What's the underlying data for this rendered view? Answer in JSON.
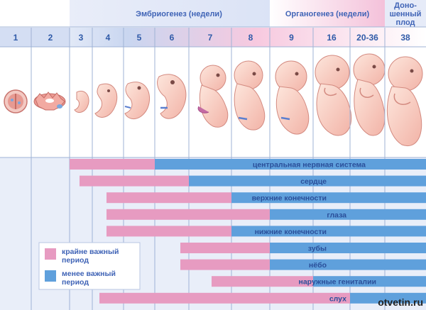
{
  "headers": {
    "embryo": "Эмбриогенез (недели)",
    "organ": "Органогенез (недели)",
    "fullterm_line1": "Доно-",
    "fullterm_line2": "шенный",
    "fullterm_line3": "плод"
  },
  "weeks": [
    "1",
    "2",
    "3",
    "4",
    "5",
    "6",
    "7",
    "8",
    "9",
    "16",
    "20-36",
    "38"
  ],
  "organs": [
    {
      "label": "центральная нервная система",
      "critical_from": "3",
      "critical_to": "5",
      "less_from": "6",
      "less_to": "38"
    },
    {
      "label": "сердце",
      "critical_from": "3",
      "critical_to": "6",
      "less_from": "6",
      "less_to": "8"
    },
    {
      "label": "верхние конечности",
      "critical_from": "4",
      "critical_to": "7",
      "less_from": "8",
      "less_to": "8"
    },
    {
      "label": "глаза",
      "critical_from": "4",
      "critical_to": "8",
      "less_from": "8",
      "less_to": "38"
    },
    {
      "label": "нижние конечности",
      "critical_from": "4",
      "critical_to": "7",
      "less_from": "8",
      "less_to": "8"
    },
    {
      "label": "зубы",
      "critical_from": "7",
      "critical_to": "8",
      "less_from": "9",
      "less_to": "16"
    },
    {
      "label": "нёбо",
      "critical_from": "7",
      "critical_to": "8",
      "less_from": "9",
      "less_to": "9"
    },
    {
      "label": "наружные гениталии",
      "critical_from": "7",
      "critical_to": "9",
      "less_from": "9",
      "less_to": "38"
    },
    {
      "label": "слух",
      "critical_from": "4",
      "critical_to": "16",
      "less_from": "16",
      "less_to": "38"
    }
  ],
  "legend": {
    "critical_line1": "крайне важный",
    "critical_line2": "период",
    "less_line1": "менее важный",
    "less_line2": "период"
  },
  "watermark": "otvetin.ru",
  "colors": {
    "critical": "#e79bc1",
    "less": "#5fa0dc",
    "header_bg": "#e8ecf8",
    "grid": "#9fb3d6"
  }
}
